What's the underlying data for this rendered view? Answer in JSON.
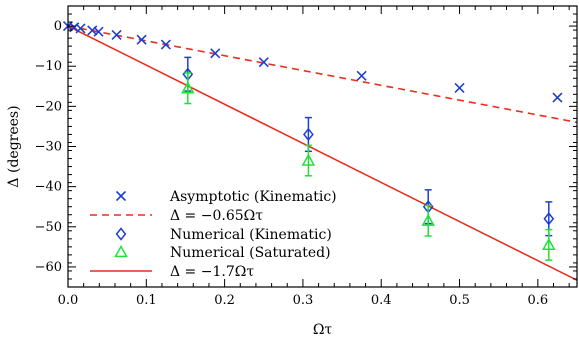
{
  "chart_data": {
    "type": "scatter",
    "xlabel": "Ωτ",
    "ylabel": "Δ (degrees)",
    "xlim": [
      0.0,
      0.65
    ],
    "ylim": [
      -65,
      5
    ],
    "x_ticks": [
      "0.0",
      "0.1",
      "0.2",
      "0.3",
      "0.4",
      "0.5",
      "0.6"
    ],
    "y_ticks": [
      "0",
      "−10",
      "−20",
      "−30",
      "−40",
      "−50",
      "−60"
    ],
    "x_tick_values": [
      0.0,
      0.1,
      0.2,
      0.3,
      0.4,
      0.5,
      0.6
    ],
    "y_tick_values": [
      0,
      -10,
      -20,
      -30,
      -40,
      -50,
      -60
    ],
    "legend_position": "bottom-left",
    "series": [
      {
        "name": "Asymptotic (Kinematic)",
        "marker": "x",
        "color": "#1f3fd0",
        "points": [
          {
            "x": 0.0,
            "y": 0.0
          },
          {
            "x": 0.008,
            "y": -0.3
          },
          {
            "x": 0.016,
            "y": -0.6
          },
          {
            "x": 0.031,
            "y": -1.1
          },
          {
            "x": 0.039,
            "y": -1.4
          },
          {
            "x": 0.062,
            "y": -2.2
          },
          {
            "x": 0.094,
            "y": -3.4
          },
          {
            "x": 0.125,
            "y": -4.6
          },
          {
            "x": 0.188,
            "y": -6.8
          },
          {
            "x": 0.25,
            "y": -9.0
          },
          {
            "x": 0.375,
            "y": -12.4
          },
          {
            "x": 0.5,
            "y": -15.4
          },
          {
            "x": 0.625,
            "y": -17.8
          }
        ]
      },
      {
        "name": "Δ = −0.65Ωτ",
        "line": "dashed",
        "color": "#e8301c",
        "slope": -36.9
      },
      {
        "name": "Numerical  (Kinematic)",
        "marker": "diamond",
        "color": "#1f3fd0",
        "points": [
          {
            "x": 0.153,
            "y": -12.0,
            "err": 4.2
          },
          {
            "x": 0.307,
            "y": -27.0,
            "err": 4.2
          },
          {
            "x": 0.46,
            "y": -45.0,
            "err": 4.2
          },
          {
            "x": 0.614,
            "y": -48.0,
            "err": 4.2
          }
        ]
      },
      {
        "name": "Numerical  (Saturated)",
        "marker": "triangle",
        "color": "#22e03a",
        "points": [
          {
            "x": 0.153,
            "y": -15.5,
            "err": 3.8
          },
          {
            "x": 0.307,
            "y": -33.5,
            "err": 3.8
          },
          {
            "x": 0.46,
            "y": -48.5,
            "err": 3.8
          },
          {
            "x": 0.614,
            "y": -54.5,
            "err": 3.8
          }
        ]
      },
      {
        "name": "Δ = −1.7Ωτ",
        "line": "solid",
        "color": "#e8301c",
        "slope": -97.4
      }
    ]
  }
}
